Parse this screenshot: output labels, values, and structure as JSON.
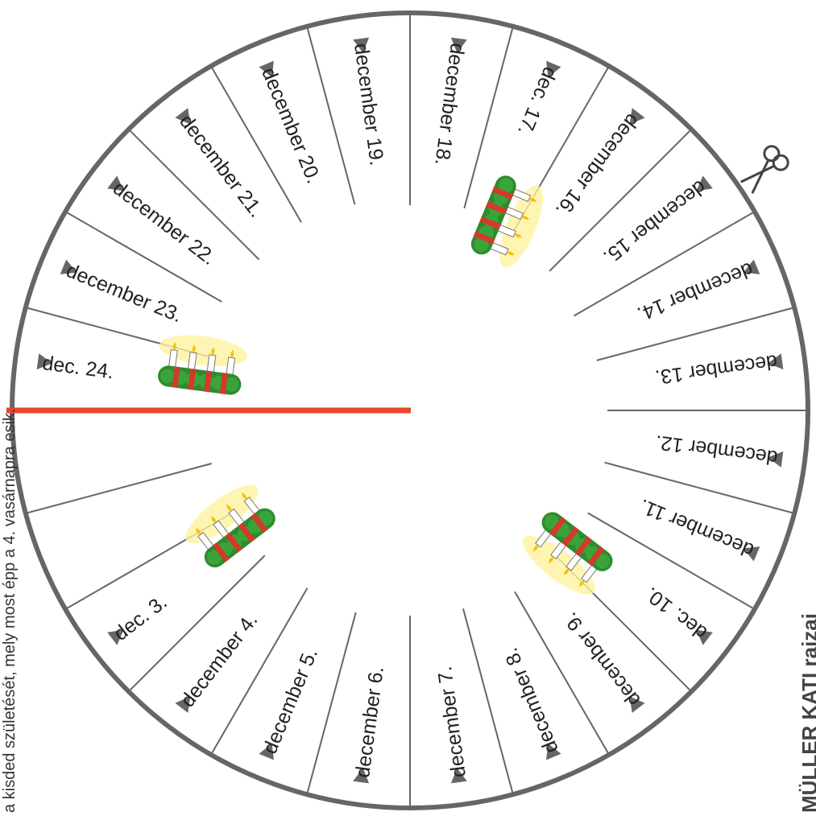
{
  "calendar": {
    "days": [
      "dec. 3.",
      "december 4.",
      "december 5.",
      "december 6.",
      "december 7.",
      "december 8.",
      "december 9.",
      "dec. 10.",
      "december 11.",
      "december 12.",
      "december 13.",
      "december 14.",
      "december 15.",
      "december 16.",
      "dec. 17.",
      "december 18.",
      "december 19.",
      "december 20.",
      "december 21.",
      "december 22.",
      "december 23.",
      "dec. 24."
    ]
  },
  "side_text": "a kisded születését, mely most épp a 4. vasárnapra esik.",
  "credit": "MÜLLER KATI rajzai",
  "icons": {
    "scissors": "scissors-icon",
    "wreath": "advent-wreath-icon"
  },
  "colors": {
    "ring": "#666666",
    "marker_line": "#e8472a",
    "arrow": "#666666",
    "wreath_green": "#2e8b2e",
    "wreath_ribbon": "#d23a2a",
    "flame": "#f5c400"
  }
}
